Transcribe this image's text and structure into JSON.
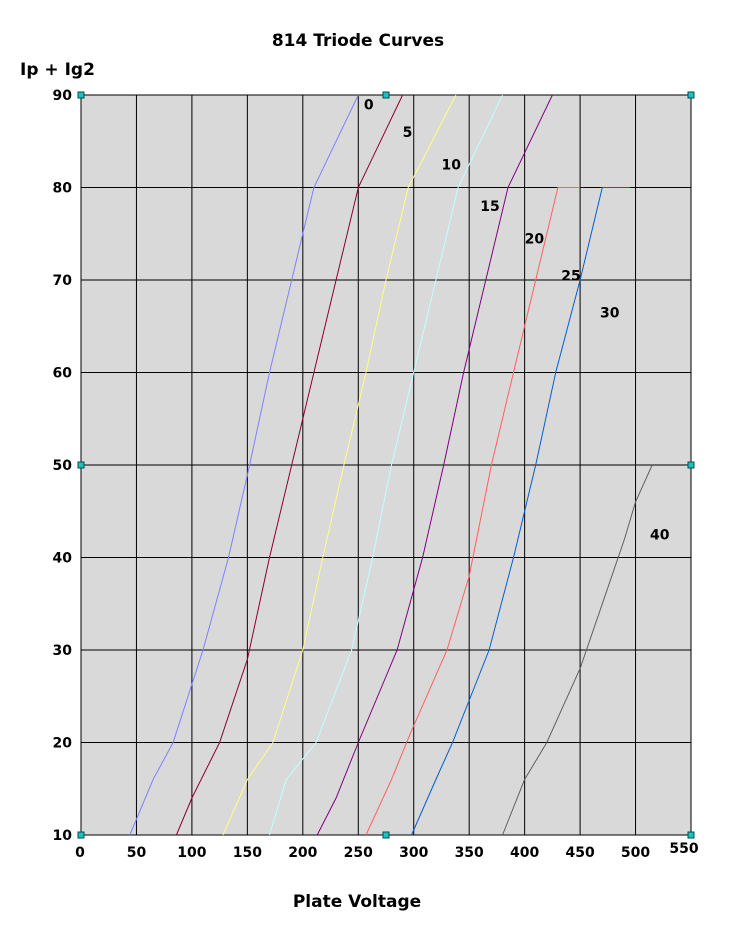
{
  "chart_data": {
    "type": "line",
    "title": "814 Triode Curves",
    "ylabel": "Ip + Ig2",
    "xlabel": "Plate Voltage",
    "xlim": [
      0,
      550
    ],
    "ylim": [
      10,
      90
    ],
    "x_ticks": [
      0,
      50,
      100,
      150,
      200,
      250,
      300,
      350,
      400,
      450,
      500,
      550
    ],
    "y_ticks": [
      10,
      20,
      30,
      40,
      50,
      60,
      70,
      80,
      90
    ],
    "grid": true,
    "plot_background": "#d9d9d9",
    "series": [
      {
        "name": "0",
        "color": "#8080ff",
        "points": [
          [
            44,
            10
          ],
          [
            65,
            16
          ],
          [
            83,
            20
          ],
          [
            110,
            30
          ],
          [
            133,
            40
          ],
          [
            152,
            50
          ],
          [
            170,
            60
          ],
          [
            190,
            70
          ],
          [
            210,
            80
          ],
          [
            250,
            90
          ]
        ]
      },
      {
        "name": "5",
        "color": "#8b0030",
        "points": [
          [
            86,
            10
          ],
          [
            100,
            14
          ],
          [
            125,
            20
          ],
          [
            150,
            29
          ],
          [
            170,
            40
          ],
          [
            190,
            50
          ],
          [
            210,
            60
          ],
          [
            230,
            70
          ],
          [
            250,
            80
          ],
          [
            290,
            90
          ]
        ]
      },
      {
        "name": "10",
        "color": "#ffff80",
        "points": [
          [
            128,
            10
          ],
          [
            150,
            16
          ],
          [
            173,
            20
          ],
          [
            200,
            30
          ],
          [
            218,
            40
          ],
          [
            237,
            50
          ],
          [
            257,
            60
          ],
          [
            275,
            70
          ],
          [
            295,
            80
          ],
          [
            338,
            90
          ]
        ]
      },
      {
        "name": "15",
        "color": "#c0ffff",
        "points": [
          [
            170,
            10
          ],
          [
            185,
            16
          ],
          [
            212,
            20
          ],
          [
            244,
            30
          ],
          [
            263,
            40
          ],
          [
            280,
            50
          ],
          [
            300,
            60
          ],
          [
            320,
            70
          ],
          [
            340,
            80
          ],
          [
            380,
            90
          ]
        ]
      },
      {
        "name": "20",
        "color": "#800080",
        "points": [
          [
            213,
            10
          ],
          [
            230,
            14
          ],
          [
            250,
            20
          ],
          [
            285,
            30
          ],
          [
            308,
            40
          ],
          [
            327,
            50
          ],
          [
            345,
            60
          ],
          [
            365,
            70
          ],
          [
            385,
            80
          ],
          [
            425,
            90
          ]
        ]
      },
      {
        "name": "25",
        "color": "#ff6060",
        "points": [
          [
            257,
            10
          ],
          [
            280,
            16
          ],
          [
            297,
            21
          ],
          [
            330,
            30
          ],
          [
            350,
            38
          ],
          [
            370,
            50
          ],
          [
            390,
            60
          ],
          [
            410,
            70
          ],
          [
            430,
            80
          ],
          [
            450,
            80
          ]
        ]
      },
      {
        "name": "30",
        "color": "#0060d0",
        "points": [
          [
            298,
            10
          ],
          [
            320,
            16
          ],
          [
            335,
            20
          ],
          [
            368,
            30
          ],
          [
            390,
            40
          ],
          [
            410,
            50
          ],
          [
            428,
            60
          ],
          [
            450,
            70
          ],
          [
            470,
            80
          ],
          [
            495,
            80
          ]
        ]
      },
      {
        "name": "40",
        "color": "#606060",
        "points": [
          [
            380,
            10
          ],
          [
            400,
            16
          ],
          [
            420,
            20
          ],
          [
            450,
            28
          ],
          [
            470,
            35
          ],
          [
            490,
            42
          ],
          [
            500,
            46
          ],
          [
            515,
            50
          ]
        ]
      }
    ],
    "curve_labels": [
      {
        "text": "0",
        "x": 255,
        "y": 89
      },
      {
        "text": "5",
        "x": 290,
        "y": 86
      },
      {
        "text": "10",
        "x": 325,
        "y": 82.5
      },
      {
        "text": "15",
        "x": 360,
        "y": 78
      },
      {
        "text": "20",
        "x": 400,
        "y": 74.5
      },
      {
        "text": "25",
        "x": 433,
        "y": 70.5
      },
      {
        "text": "30",
        "x": 468,
        "y": 66.5
      },
      {
        "text": "40",
        "x": 513,
        "y": 42.5
      }
    ],
    "handles": [
      {
        "x": 0,
        "y": 90
      },
      {
        "x": 275,
        "y": 90
      },
      {
        "x": 550,
        "y": 90
      },
      {
        "x": 0,
        "y": 50
      },
      {
        "x": 550,
        "y": 50
      },
      {
        "x": 0,
        "y": 10
      },
      {
        "x": 275,
        "y": 10
      },
      {
        "x": 550,
        "y": 10
      }
    ]
  }
}
